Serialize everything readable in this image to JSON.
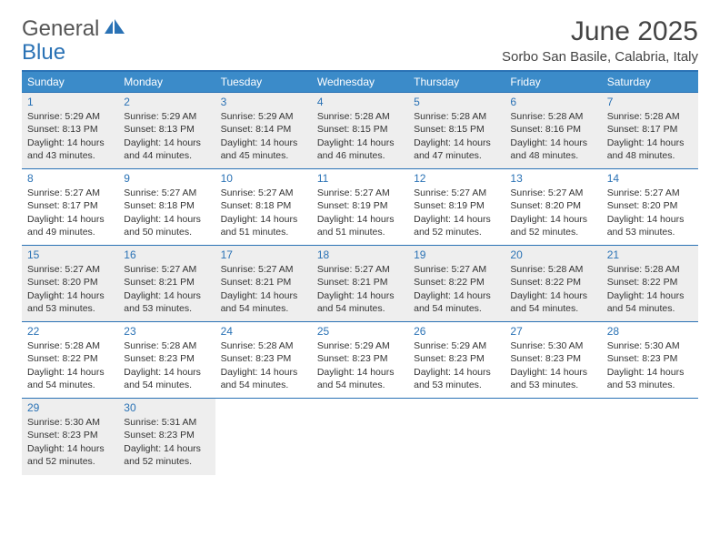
{
  "logo": {
    "part1": "General",
    "part2": "Blue"
  },
  "title": "June 2025",
  "location": "Sorbo San Basile, Calabria, Italy",
  "colors": {
    "header_bg": "#3b8bc9",
    "border": "#2a72b5",
    "shaded_bg": "#eeeeee",
    "text": "#333333",
    "daynum": "#2a72b5"
  },
  "day_headers": [
    "Sunday",
    "Monday",
    "Tuesday",
    "Wednesday",
    "Thursday",
    "Friday",
    "Saturday"
  ],
  "weeks": [
    {
      "shaded": true,
      "cells": [
        {
          "num": "1",
          "sunrise": "Sunrise: 5:29 AM",
          "sunset": "Sunset: 8:13 PM",
          "day1": "Daylight: 14 hours",
          "day2": "and 43 minutes."
        },
        {
          "num": "2",
          "sunrise": "Sunrise: 5:29 AM",
          "sunset": "Sunset: 8:13 PM",
          "day1": "Daylight: 14 hours",
          "day2": "and 44 minutes."
        },
        {
          "num": "3",
          "sunrise": "Sunrise: 5:29 AM",
          "sunset": "Sunset: 8:14 PM",
          "day1": "Daylight: 14 hours",
          "day2": "and 45 minutes."
        },
        {
          "num": "4",
          "sunrise": "Sunrise: 5:28 AM",
          "sunset": "Sunset: 8:15 PM",
          "day1": "Daylight: 14 hours",
          "day2": "and 46 minutes."
        },
        {
          "num": "5",
          "sunrise": "Sunrise: 5:28 AM",
          "sunset": "Sunset: 8:15 PM",
          "day1": "Daylight: 14 hours",
          "day2": "and 47 minutes."
        },
        {
          "num": "6",
          "sunrise": "Sunrise: 5:28 AM",
          "sunset": "Sunset: 8:16 PM",
          "day1": "Daylight: 14 hours",
          "day2": "and 48 minutes."
        },
        {
          "num": "7",
          "sunrise": "Sunrise: 5:28 AM",
          "sunset": "Sunset: 8:17 PM",
          "day1": "Daylight: 14 hours",
          "day2": "and 48 minutes."
        }
      ]
    },
    {
      "shaded": false,
      "cells": [
        {
          "num": "8",
          "sunrise": "Sunrise: 5:27 AM",
          "sunset": "Sunset: 8:17 PM",
          "day1": "Daylight: 14 hours",
          "day2": "and 49 minutes."
        },
        {
          "num": "9",
          "sunrise": "Sunrise: 5:27 AM",
          "sunset": "Sunset: 8:18 PM",
          "day1": "Daylight: 14 hours",
          "day2": "and 50 minutes."
        },
        {
          "num": "10",
          "sunrise": "Sunrise: 5:27 AM",
          "sunset": "Sunset: 8:18 PM",
          "day1": "Daylight: 14 hours",
          "day2": "and 51 minutes."
        },
        {
          "num": "11",
          "sunrise": "Sunrise: 5:27 AM",
          "sunset": "Sunset: 8:19 PM",
          "day1": "Daylight: 14 hours",
          "day2": "and 51 minutes."
        },
        {
          "num": "12",
          "sunrise": "Sunrise: 5:27 AM",
          "sunset": "Sunset: 8:19 PM",
          "day1": "Daylight: 14 hours",
          "day2": "and 52 minutes."
        },
        {
          "num": "13",
          "sunrise": "Sunrise: 5:27 AM",
          "sunset": "Sunset: 8:20 PM",
          "day1": "Daylight: 14 hours",
          "day2": "and 52 minutes."
        },
        {
          "num": "14",
          "sunrise": "Sunrise: 5:27 AM",
          "sunset": "Sunset: 8:20 PM",
          "day1": "Daylight: 14 hours",
          "day2": "and 53 minutes."
        }
      ]
    },
    {
      "shaded": true,
      "cells": [
        {
          "num": "15",
          "sunrise": "Sunrise: 5:27 AM",
          "sunset": "Sunset: 8:20 PM",
          "day1": "Daylight: 14 hours",
          "day2": "and 53 minutes."
        },
        {
          "num": "16",
          "sunrise": "Sunrise: 5:27 AM",
          "sunset": "Sunset: 8:21 PM",
          "day1": "Daylight: 14 hours",
          "day2": "and 53 minutes."
        },
        {
          "num": "17",
          "sunrise": "Sunrise: 5:27 AM",
          "sunset": "Sunset: 8:21 PM",
          "day1": "Daylight: 14 hours",
          "day2": "and 54 minutes."
        },
        {
          "num": "18",
          "sunrise": "Sunrise: 5:27 AM",
          "sunset": "Sunset: 8:21 PM",
          "day1": "Daylight: 14 hours",
          "day2": "and 54 minutes."
        },
        {
          "num": "19",
          "sunrise": "Sunrise: 5:27 AM",
          "sunset": "Sunset: 8:22 PM",
          "day1": "Daylight: 14 hours",
          "day2": "and 54 minutes."
        },
        {
          "num": "20",
          "sunrise": "Sunrise: 5:28 AM",
          "sunset": "Sunset: 8:22 PM",
          "day1": "Daylight: 14 hours",
          "day2": "and 54 minutes."
        },
        {
          "num": "21",
          "sunrise": "Sunrise: 5:28 AM",
          "sunset": "Sunset: 8:22 PM",
          "day1": "Daylight: 14 hours",
          "day2": "and 54 minutes."
        }
      ]
    },
    {
      "shaded": false,
      "cells": [
        {
          "num": "22",
          "sunrise": "Sunrise: 5:28 AM",
          "sunset": "Sunset: 8:22 PM",
          "day1": "Daylight: 14 hours",
          "day2": "and 54 minutes."
        },
        {
          "num": "23",
          "sunrise": "Sunrise: 5:28 AM",
          "sunset": "Sunset: 8:23 PM",
          "day1": "Daylight: 14 hours",
          "day2": "and 54 minutes."
        },
        {
          "num": "24",
          "sunrise": "Sunrise: 5:28 AM",
          "sunset": "Sunset: 8:23 PM",
          "day1": "Daylight: 14 hours",
          "day2": "and 54 minutes."
        },
        {
          "num": "25",
          "sunrise": "Sunrise: 5:29 AM",
          "sunset": "Sunset: 8:23 PM",
          "day1": "Daylight: 14 hours",
          "day2": "and 54 minutes."
        },
        {
          "num": "26",
          "sunrise": "Sunrise: 5:29 AM",
          "sunset": "Sunset: 8:23 PM",
          "day1": "Daylight: 14 hours",
          "day2": "and 53 minutes."
        },
        {
          "num": "27",
          "sunrise": "Sunrise: 5:30 AM",
          "sunset": "Sunset: 8:23 PM",
          "day1": "Daylight: 14 hours",
          "day2": "and 53 minutes."
        },
        {
          "num": "28",
          "sunrise": "Sunrise: 5:30 AM",
          "sunset": "Sunset: 8:23 PM",
          "day1": "Daylight: 14 hours",
          "day2": "and 53 minutes."
        }
      ]
    },
    {
      "shaded": true,
      "cells": [
        {
          "num": "29",
          "sunrise": "Sunrise: 5:30 AM",
          "sunset": "Sunset: 8:23 PM",
          "day1": "Daylight: 14 hours",
          "day2": "and 52 minutes."
        },
        {
          "num": "30",
          "sunrise": "Sunrise: 5:31 AM",
          "sunset": "Sunset: 8:23 PM",
          "day1": "Daylight: 14 hours",
          "day2": "and 52 minutes."
        },
        null,
        null,
        null,
        null,
        null
      ]
    }
  ]
}
